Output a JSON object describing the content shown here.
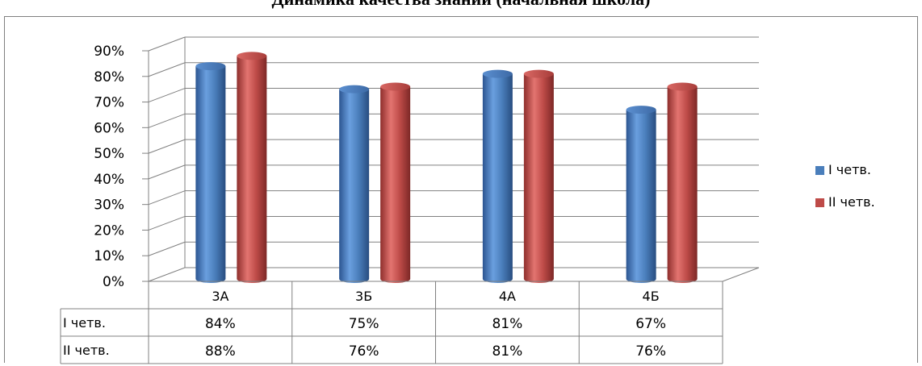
{
  "chart_data": {
    "type": "bar",
    "title": "Динамика качества знаний (начальная школа)",
    "categories": [
      "3А",
      "3Б",
      "4А",
      "4Б"
    ],
    "series": [
      {
        "name": "I четв.",
        "values": [
          84,
          75,
          81,
          67
        ],
        "labels": [
          "84%",
          "75%",
          "81%",
          "67%"
        ],
        "color": "#4a7ebb"
      },
      {
        "name": "II четв.",
        "values": [
          88,
          76,
          81,
          76
        ],
        "labels": [
          "88%",
          "76%",
          "81%",
          "76%"
        ],
        "color": "#be4b48"
      }
    ],
    "yticks": [
      "0%",
      "10%",
      "20%",
      "30%",
      "40%",
      "50%",
      "60%",
      "70%",
      "80%",
      "90%"
    ],
    "ylim": [
      0,
      90
    ],
    "grid": true,
    "legend": "right",
    "data_table": true
  }
}
